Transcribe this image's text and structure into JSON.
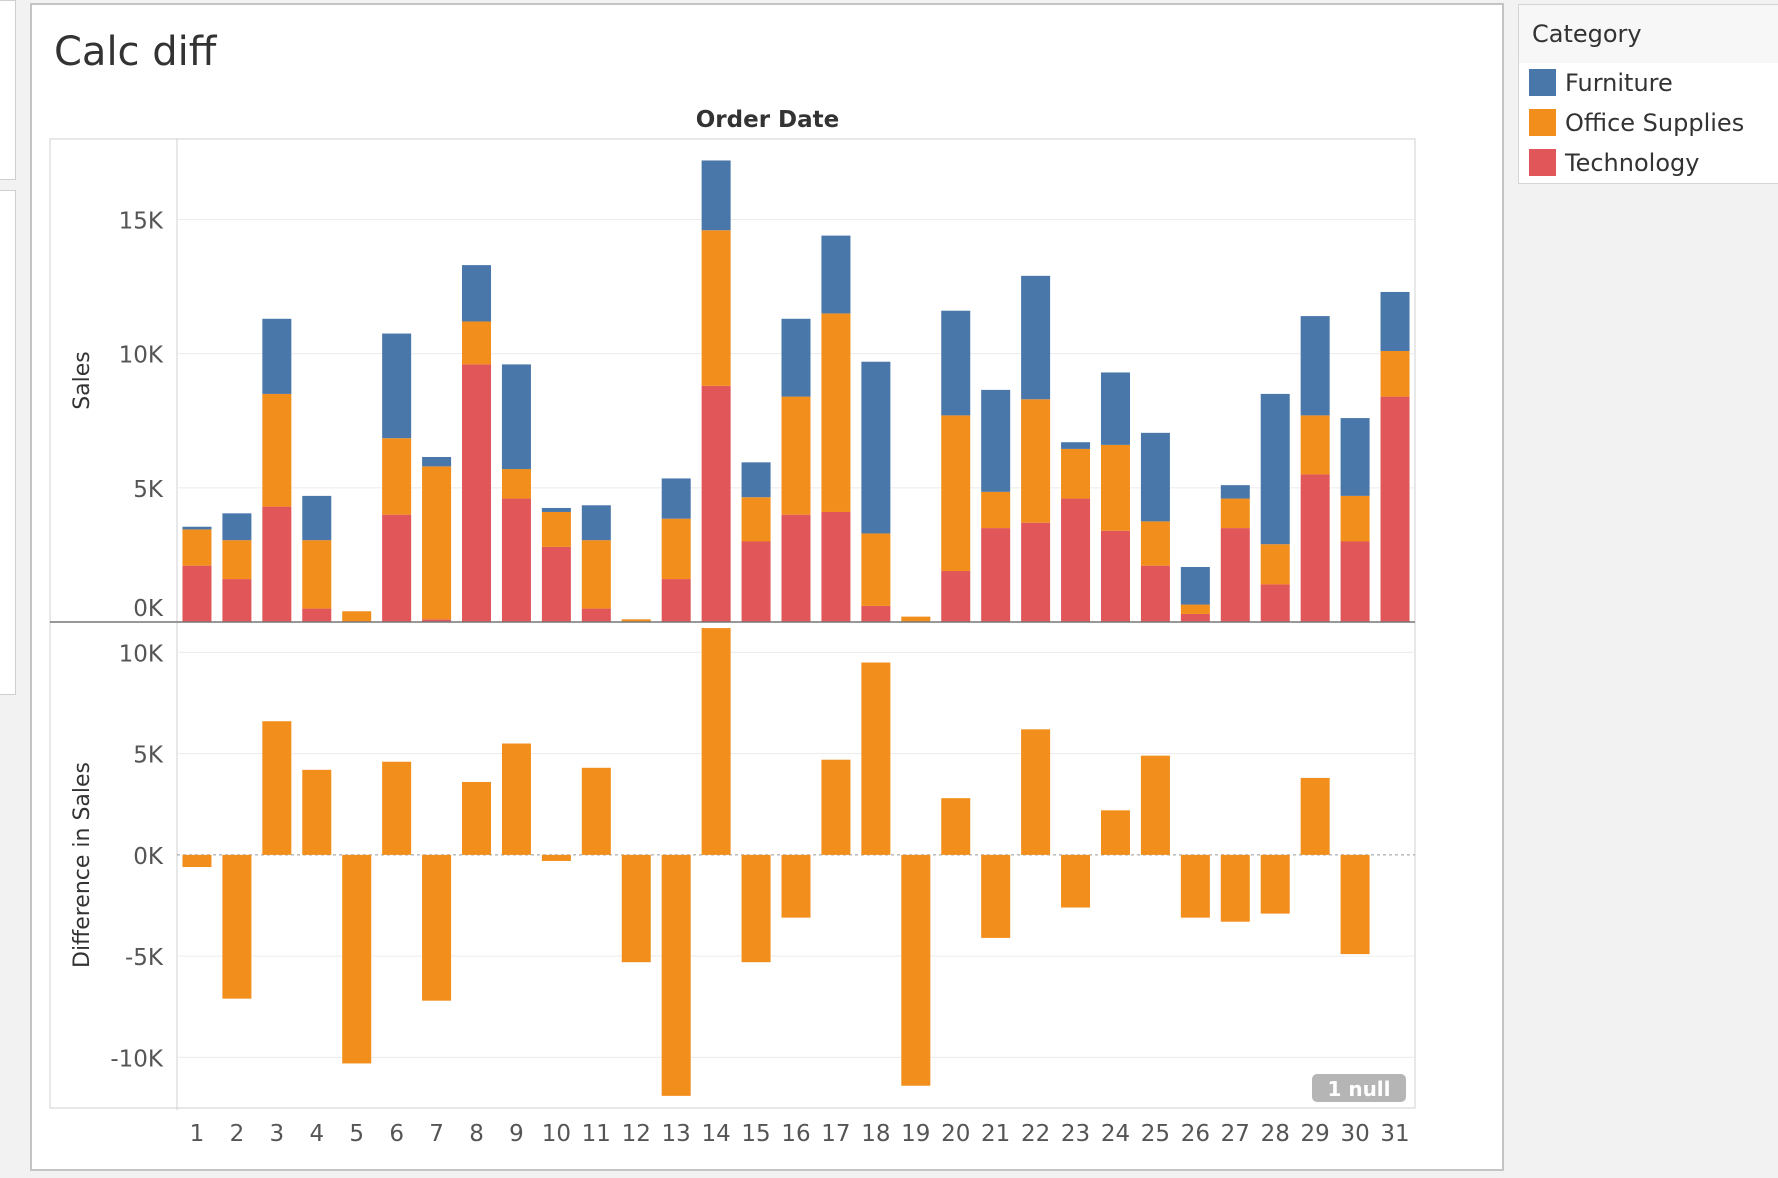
{
  "worksheet": {
    "title": "Calc diff"
  },
  "legend": {
    "title": "Category",
    "items": [
      {
        "name": "Furniture",
        "color": "#4a77aa"
      },
      {
        "name": "Office Supplies",
        "color": "#f28e1c"
      },
      {
        "name": "Technology",
        "color": "#e15759"
      }
    ]
  },
  "null_badge": "1 null",
  "chart_data": [
    {
      "type": "bar",
      "stacked": true,
      "title": "Order Date",
      "xlabel": "",
      "ylabel": "Sales",
      "ylim": [
        0,
        18000
      ],
      "yticks": [
        0,
        5000,
        10000,
        15000
      ],
      "ytick_labels": [
        "0K",
        "5K",
        "10K",
        "15K"
      ],
      "grid": true,
      "legend": "right",
      "categories": [
        "1",
        "2",
        "3",
        "4",
        "5",
        "6",
        "7",
        "8",
        "9",
        "10",
        "11",
        "12",
        "13",
        "14",
        "15",
        "16",
        "17",
        "18",
        "19",
        "20",
        "21",
        "22",
        "23",
        "24",
        "25",
        "26",
        "27",
        "28",
        "29",
        "30",
        "31"
      ],
      "series": [
        {
          "name": "Technology",
          "color": "#e15759",
          "values": [
            2100,
            1600,
            4300,
            500,
            0,
            4000,
            100,
            9600,
            4600,
            2800,
            500,
            0,
            1600,
            8800,
            3000,
            4000,
            4100,
            600,
            0,
            1900,
            3500,
            3700,
            4600,
            3400,
            2100,
            300,
            3500,
            1400,
            5500,
            3000,
            8400
          ]
        },
        {
          "name": "Office Supplies",
          "color": "#f28e1c",
          "values": [
            1350,
            1450,
            4200,
            2550,
            400,
            2850,
            5700,
            1600,
            1100,
            1300,
            2550,
            100,
            2250,
            5800,
            1650,
            4400,
            7400,
            2700,
            200,
            5800,
            1350,
            4600,
            1850,
            3200,
            1650,
            350,
            1100,
            1500,
            2200,
            1700,
            1700
          ]
        },
        {
          "name": "Furniture",
          "color": "#4a77aa",
          "values": [
            100,
            1000,
            2800,
            1650,
            0,
            3900,
            350,
            2100,
            3900,
            150,
            1300,
            0,
            1500,
            2600,
            1300,
            2900,
            2900,
            6400,
            0,
            3900,
            3800,
            4600,
            250,
            2700,
            3300,
            1400,
            500,
            5600,
            3700,
            2900,
            2200
          ]
        }
      ]
    },
    {
      "type": "bar",
      "xlabel": "",
      "ylabel": "Difference in Sales",
      "ylim": [
        -12500,
        11500
      ],
      "yticks": [
        -10000,
        -5000,
        0,
        5000,
        10000
      ],
      "ytick_labels": [
        "-10K",
        "-5K",
        "0K",
        "5K",
        "10K"
      ],
      "grid": true,
      "categories": [
        "1",
        "2",
        "3",
        "4",
        "5",
        "6",
        "7",
        "8",
        "9",
        "10",
        "11",
        "12",
        "13",
        "14",
        "15",
        "16",
        "17",
        "18",
        "19",
        "20",
        "21",
        "22",
        "23",
        "24",
        "25",
        "26",
        "27",
        "28",
        "29",
        "30",
        "31"
      ],
      "series": [
        {
          "name": "Difference in Sales",
          "color": "#f28e1c",
          "values": [
            -600,
            -7100,
            6600,
            4200,
            -10300,
            4600,
            -7200,
            3600,
            5500,
            -300,
            4300,
            -5300,
            -11900,
            11200,
            -5300,
            -3100,
            4700,
            9500,
            -11400,
            2800,
            -4100,
            6200,
            -2600,
            2200,
            4900,
            -3100,
            -3300,
            -2900,
            3800,
            -4900,
            null
          ]
        }
      ]
    }
  ]
}
